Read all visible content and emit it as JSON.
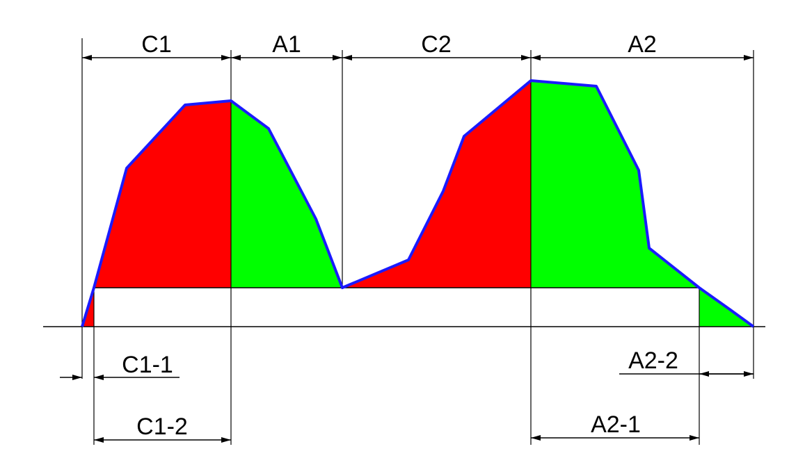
{
  "colors": {
    "cut_region": "#ff0000",
    "fill_region": "#00ff00",
    "profile_outline": "#1a1aff",
    "lines": "#000000",
    "background": "#ffffff"
  },
  "labels": {
    "c1": "C1",
    "a1": "A1",
    "c2": "C2",
    "a2": "A2",
    "c1_1": "C1-1",
    "c1_2": "C1-2",
    "a2_1": "A2-1",
    "a2_2": "A2-2"
  }
}
